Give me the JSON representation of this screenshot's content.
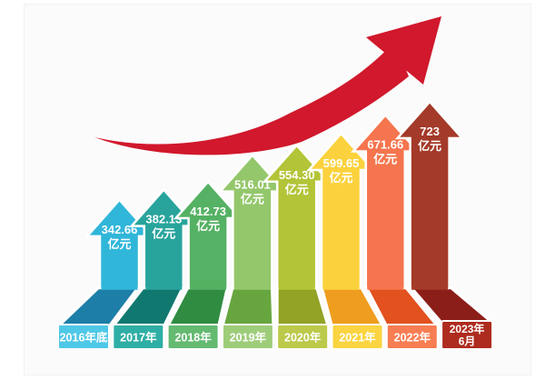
{
  "chart_data": {
    "type": "bar",
    "title": "",
    "unit_label": "亿元",
    "categories": [
      "2016年底",
      "2017年",
      "2018年",
      "2019年",
      "2020年",
      "2021年",
      "2022年",
      "2023年6月"
    ],
    "category_lines": [
      [
        "2016年底"
      ],
      [
        "2017年"
      ],
      [
        "2018年"
      ],
      [
        "2019年"
      ],
      [
        "2020年"
      ],
      [
        "2021年"
      ],
      [
        "2022年"
      ],
      [
        "2023年",
        "6月"
      ]
    ],
    "values": [
      342.66,
      382.13,
      412.73,
      516.01,
      554.3,
      599.65,
      671.66,
      723
    ],
    "value_labels": [
      "342.66",
      "382.13",
      "412.73",
      "516.01",
      "554.30",
      "599.65",
      "671.66",
      "723"
    ],
    "ylim": [
      0,
      760
    ],
    "grid": false,
    "legend": false,
    "bar_colors": [
      {
        "arrow": "#30B6D9",
        "ribbon": "#1D7FA8",
        "plate": "#4FC8E7"
      },
      {
        "arrow": "#28A49C",
        "ribbon": "#117870",
        "plate": "#2FAEA5"
      },
      {
        "arrow": "#55B163",
        "ribbon": "#2F8C41",
        "plate": "#64BA71"
      },
      {
        "arrow": "#94C76B",
        "ribbon": "#67A63F",
        "plate": "#9ECD7A"
      },
      {
        "arrow": "#B3C438",
        "ribbon": "#93A325",
        "plate": "#BCC94A"
      },
      {
        "arrow": "#FBD23D",
        "ribbon": "#EF9D1F",
        "plate": "#FBD441"
      },
      {
        "arrow": "#F5754E",
        "ribbon": "#E2511E",
        "plate": "#F87D52"
      },
      {
        "arrow": "#A43A29",
        "ribbon": "#8C1E19",
        "plate": "#AE2B1F"
      }
    ],
    "trend_arrow_color": "#D1182C",
    "label_text_color": "#FFFFFF",
    "canvas_color": "#FBFBFB"
  }
}
